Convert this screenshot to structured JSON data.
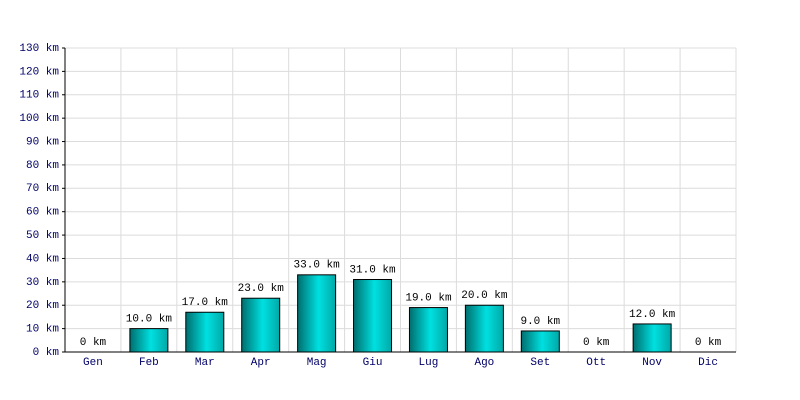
{
  "chart_data": {
    "type": "bar",
    "categories": [
      "Gen",
      "Feb",
      "Mar",
      "Apr",
      "Mag",
      "Giu",
      "Lug",
      "Ago",
      "Set",
      "Ott",
      "Nov",
      "Dic"
    ],
    "values": [
      0,
      10,
      17,
      23,
      33,
      31,
      19,
      20,
      9,
      0,
      12,
      0
    ],
    "value_labels": [
      "0 km",
      "10.0 km",
      "17.0 km",
      "23.0 km",
      "33.0 km",
      "31.0 km",
      "19.0 km",
      "20.0 km",
      "9.0 km",
      "0 km",
      "12.0 km",
      "0 km"
    ],
    "color": "#00e0e0",
    "ylim": [
      0,
      130
    ],
    "yticks": [
      {
        "value": 0,
        "label": "0 km"
      },
      {
        "value": 10,
        "label": "10 km"
      },
      {
        "value": 20,
        "label": "20 km"
      },
      {
        "value": 30,
        "label": "30 km"
      },
      {
        "value": 40,
        "label": "40 km"
      },
      {
        "value": 50,
        "label": "50 km"
      },
      {
        "value": 60,
        "label": "60 km"
      },
      {
        "value": 70,
        "label": "70 km"
      },
      {
        "value": 80,
        "label": "80 km"
      },
      {
        "value": 90,
        "label": "90 km"
      },
      {
        "value": 100,
        "label": "100 km"
      },
      {
        "value": 110,
        "label": "110 km"
      },
      {
        "value": 120,
        "label": "120 km"
      },
      {
        "value": 130,
        "label": "130 km"
      }
    ],
    "grid": true
  }
}
